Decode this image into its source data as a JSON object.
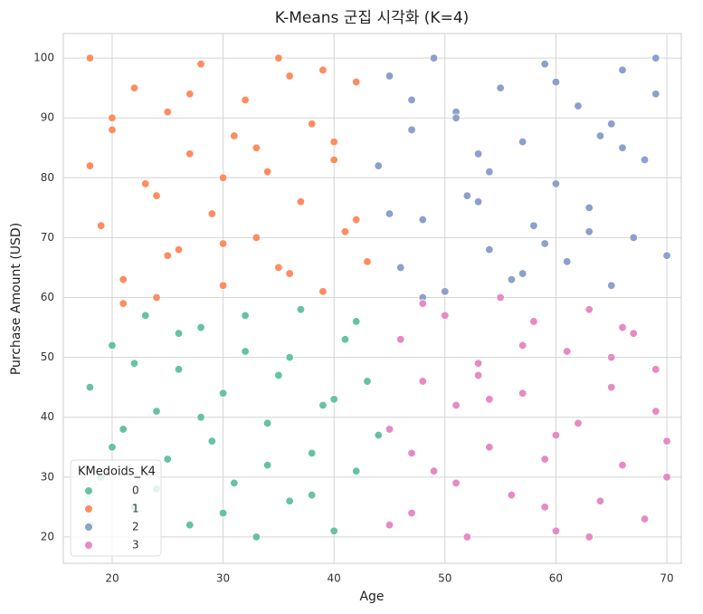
{
  "chart_data": {
    "type": "scatter",
    "title": "K-Means 군집 시각화 (K=4)",
    "xlabel": "Age",
    "ylabel": "Purchase Amount (USD)",
    "legend_title": "KMedoids_K4",
    "legend": "lower left",
    "grid": true,
    "xlim": [
      15.6,
      71.3
    ],
    "ylim": [
      15.6,
      104.1
    ],
    "xticks": [
      20,
      30,
      40,
      50,
      60,
      70
    ],
    "yticks": [
      20,
      30,
      40,
      50,
      60,
      70,
      80,
      90,
      100
    ],
    "series": [
      {
        "name": "0",
        "color": "#66c2a5",
        "x": [
          18,
          19,
          20,
          21,
          22,
          23,
          24,
          25,
          26,
          27,
          28,
          29,
          30,
          31,
          32,
          33,
          34,
          35,
          36,
          37,
          38,
          39,
          40,
          41,
          42,
          43,
          44,
          18,
          20,
          22,
          24,
          26,
          28,
          30,
          32,
          34,
          36,
          38,
          40,
          42
        ],
        "values": [
          45,
          30,
          52,
          38,
          25,
          57,
          41,
          33,
          48,
          22,
          55,
          36,
          44,
          29,
          51,
          20,
          39,
          47,
          26,
          58,
          34,
          42,
          21,
          53,
          31,
          46,
          37,
          22,
          35,
          49,
          28,
          54,
          40,
          24,
          57,
          32,
          50,
          27,
          43,
          56
        ]
      },
      {
        "name": "1",
        "color": "#fc8d62",
        "x": [
          18,
          19,
          20,
          21,
          22,
          23,
          24,
          25,
          26,
          27,
          28,
          29,
          30,
          31,
          32,
          33,
          34,
          35,
          36,
          37,
          38,
          39,
          40,
          41,
          42,
          43,
          18,
          21,
          24,
          27,
          30,
          33,
          36,
          39,
          42,
          20,
          25,
          30,
          35,
          40
        ],
        "values": [
          100,
          72,
          88,
          63,
          95,
          79,
          60,
          91,
          68,
          84,
          99,
          74,
          62,
          87,
          93,
          70,
          81,
          65,
          97,
          76,
          89,
          61,
          83,
          71,
          96,
          66,
          82,
          59,
          77,
          94,
          69,
          85,
          64,
          98,
          73,
          90,
          67,
          80,
          100,
          86
        ]
      },
      {
        "name": "2",
        "color": "#8da0cb",
        "x": [
          44,
          45,
          46,
          47,
          48,
          49,
          50,
          51,
          52,
          53,
          54,
          55,
          56,
          57,
          58,
          59,
          60,
          61,
          62,
          63,
          64,
          65,
          66,
          67,
          68,
          69,
          70,
          45,
          48,
          51,
          54,
          57,
          60,
          63,
          66,
          69,
          47,
          53,
          59,
          65
        ],
        "values": [
          82,
          97,
          65,
          88,
          73,
          100,
          61,
          91,
          77,
          84,
          68,
          95,
          63,
          86,
          72,
          99,
          79,
          66,
          92,
          75,
          87,
          62,
          98,
          70,
          83,
          94,
          67,
          74,
          60,
          90,
          81,
          64,
          96,
          71,
          85,
          100,
          93,
          76,
          69,
          89
        ]
      },
      {
        "name": "3",
        "color": "#e78ac3",
        "x": [
          45,
          46,
          47,
          48,
          49,
          50,
          51,
          52,
          53,
          54,
          55,
          56,
          57,
          58,
          59,
          60,
          61,
          62,
          63,
          64,
          65,
          66,
          67,
          68,
          69,
          70,
          45,
          48,
          51,
          54,
          57,
          60,
          63,
          66,
          69,
          47,
          53,
          59,
          65,
          70
        ],
        "values": [
          38,
          53,
          24,
          46,
          31,
          57,
          42,
          20,
          49,
          35,
          60,
          27,
          44,
          56,
          33,
          21,
          51,
          39,
          58,
          26,
          45,
          32,
          54,
          23,
          48,
          36,
          22,
          59,
          29,
          43,
          52,
          37,
          20,
          55,
          41,
          34,
          47,
          25,
          50,
          30
        ]
      }
    ]
  }
}
